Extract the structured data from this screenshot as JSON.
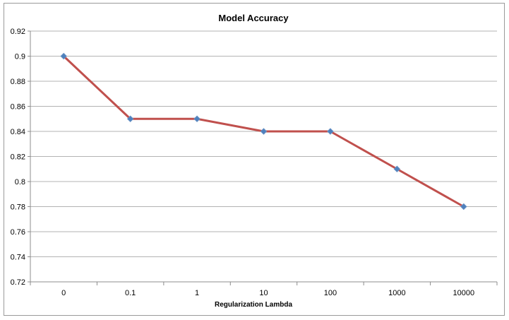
{
  "chart_data": {
    "type": "line",
    "title": "Model Accuracy",
    "xlabel": "Regularization Lambda",
    "ylabel": "",
    "categories": [
      "0",
      "0.1",
      "1",
      "10",
      "100",
      "1000",
      "10000"
    ],
    "series": [
      {
        "values": [
          0.9,
          0.85,
          0.85,
          0.84,
          0.84,
          0.81,
          0.78
        ],
        "line_color": "#C0504D",
        "marker_color": "#4F81BD",
        "marker": "diamond"
      }
    ],
    "ylim": [
      0.72,
      0.92
    ],
    "yticks": [
      "0.72",
      "0.74",
      "0.76",
      "0.78",
      "0.8",
      "0.82",
      "0.84",
      "0.86",
      "0.88",
      "0.9",
      "0.92"
    ],
    "grid": "horizontal",
    "legend": "none"
  }
}
